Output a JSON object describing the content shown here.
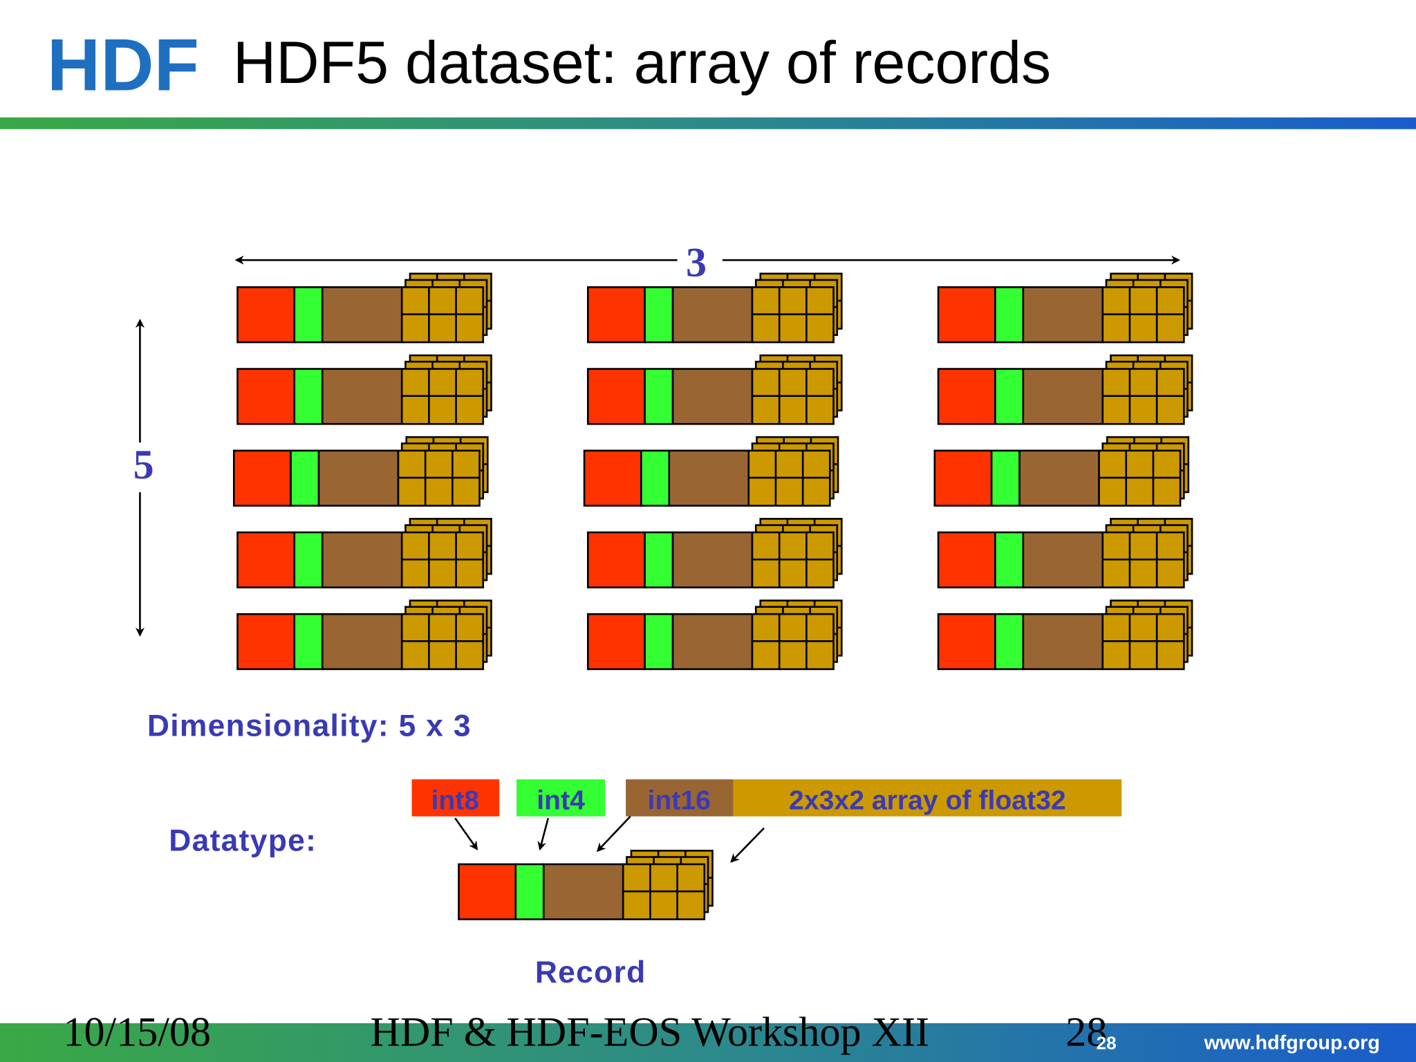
{
  "header": {
    "logo": "HDF",
    "title": "HDF5 dataset: array of records"
  },
  "diagram": {
    "cols": "3",
    "rows": "5",
    "dimensionality": "Dimensionality: 5 x 3",
    "datatype_label": "Datatype:",
    "fields": [
      "int8",
      "int4",
      "int16",
      "2x3x2 array of float32"
    ],
    "record_label": "Record"
  },
  "footer": {
    "date": "10/15/08",
    "event": "HDF & HDF-EOS  Workshop XII",
    "page": "28",
    "slide_number": "28",
    "url": "www.hdfgroup.org"
  }
}
